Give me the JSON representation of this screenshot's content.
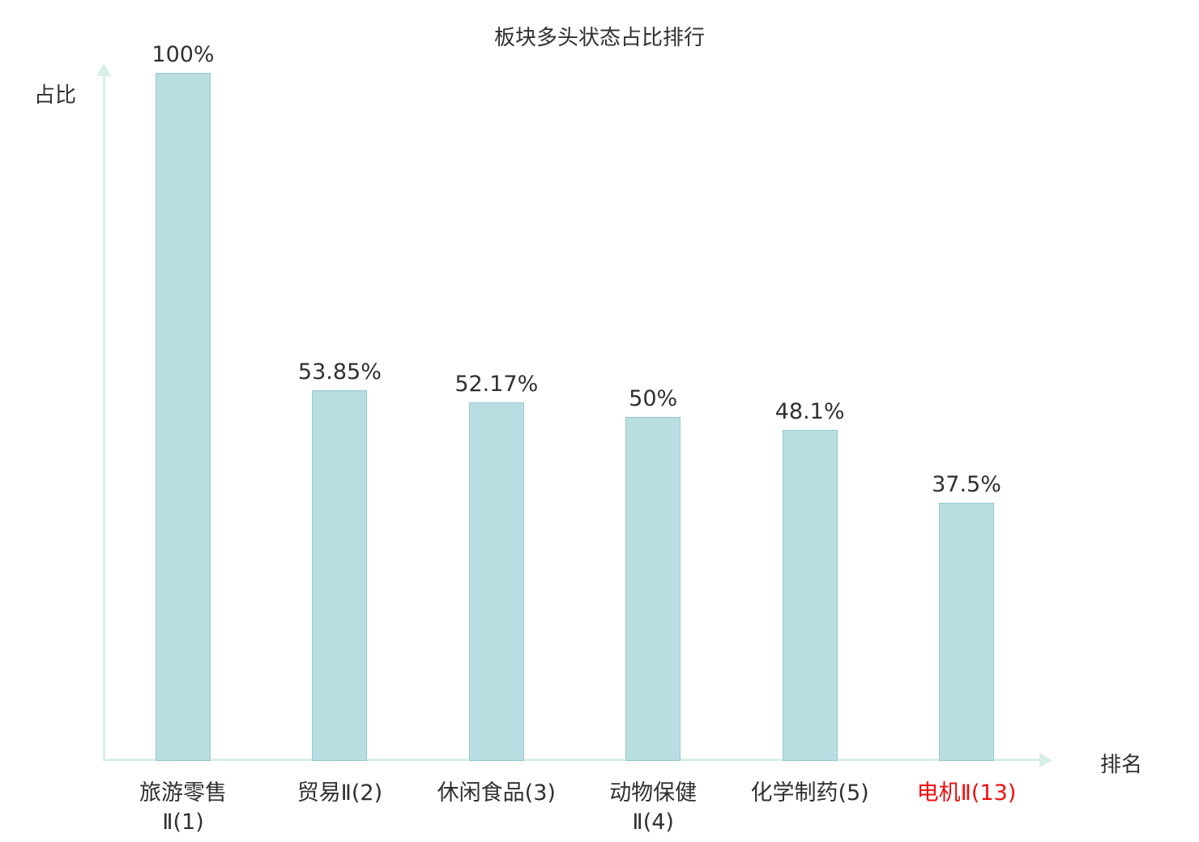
{
  "ui": {
    "title": "板块多头状态占比排行",
    "y_axis_label": "占比",
    "x_axis_label": "排名"
  },
  "chart_data": {
    "type": "bar",
    "title": "板块多头状态占比排行",
    "xlabel": "排名",
    "ylabel": "占比",
    "ylim": [
      0,
      100
    ],
    "grid": false,
    "legend": false,
    "bar_color": "#b9dee2",
    "bar_border_color": "#94cad0",
    "axis_color": "#d9efe4",
    "text_color": "#303030",
    "highlight_color": "#f00e0e",
    "categories": [
      "旅游零售Ⅱ(1)",
      "贸易Ⅱ(2)",
      "休闲食品(3)",
      "动物保健Ⅱ(4)",
      "化学制药(5)",
      "电机Ⅱ(13)"
    ],
    "values": [
      100,
      53.85,
      52.17,
      50,
      48.1,
      37.5
    ],
    "bars": [
      {
        "label_lines": [
          "旅游零售",
          "Ⅱ(1)"
        ],
        "value": 100,
        "value_label": "100%",
        "highlight": false
      },
      {
        "label_lines": [
          "贸易Ⅱ(2)"
        ],
        "value": 53.85,
        "value_label": "53.85%",
        "highlight": false
      },
      {
        "label_lines": [
          "休闲食品(3)"
        ],
        "value": 52.17,
        "value_label": "52.17%",
        "highlight": false
      },
      {
        "label_lines": [
          "动物保健",
          "Ⅱ(4)"
        ],
        "value": 50,
        "value_label": "50%",
        "highlight": false
      },
      {
        "label_lines": [
          "化学制药(5)"
        ],
        "value": 48.1,
        "value_label": "48.1%",
        "highlight": false
      },
      {
        "label_lines": [
          "电机Ⅱ(13)"
        ],
        "value": 37.5,
        "value_label": "37.5%",
        "highlight": true
      }
    ]
  }
}
